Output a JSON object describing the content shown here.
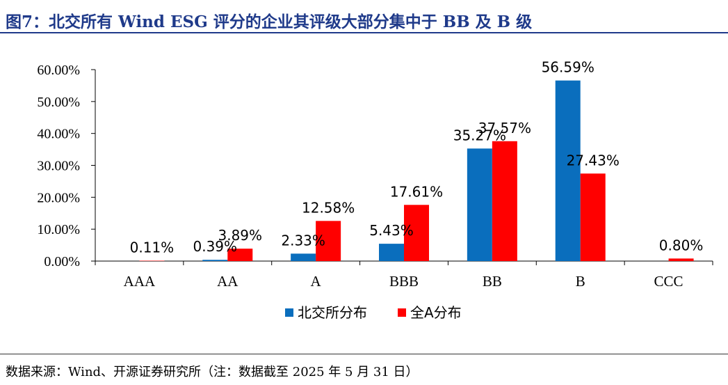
{
  "title": "图7：北交所有 Wind ESG 评分的企业其评级大部分集中于 BB 及 B 级",
  "source": "数据来源：Wind、开源证券研究所（注：数据截至 2025 年 5 月 31 日）",
  "colors": {
    "series_1": "#0a6ebd",
    "series_2": "#ff0000",
    "title": "#1f3a8a"
  },
  "chart_data": {
    "type": "bar",
    "categories": [
      "AAA",
      "AA",
      "A",
      "BBB",
      "BB",
      "B",
      "CCC"
    ],
    "series": [
      {
        "name": "北交所分布",
        "values": [
          0.0,
          0.39,
          2.33,
          5.43,
          35.27,
          56.59,
          0.0
        ],
        "labels": [
          "",
          "0.39%",
          "2.33%",
          "5.43%",
          "35.27%",
          "56.59%",
          ""
        ]
      },
      {
        "name": "全A分布",
        "values": [
          0.11,
          3.89,
          12.58,
          17.61,
          37.57,
          27.43,
          0.8
        ],
        "labels": [
          "0.11%",
          "3.89%",
          "12.58%",
          "17.61%",
          "37.57%",
          "27.43%",
          "0.80%"
        ]
      }
    ],
    "yticks": [
      "0.00%",
      "10.00%",
      "20.00%",
      "30.00%",
      "40.00%",
      "50.00%",
      "60.00%"
    ],
    "ylim": [
      0,
      60
    ],
    "legend_position": "bottom"
  }
}
